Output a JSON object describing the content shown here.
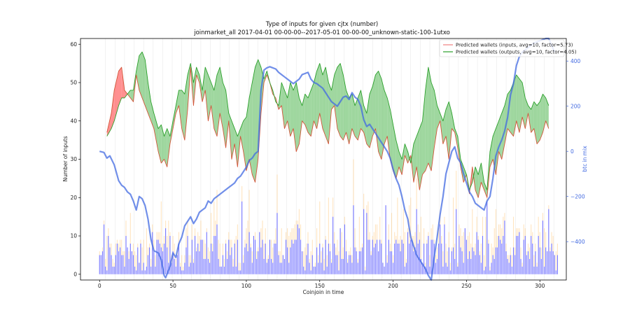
{
  "chart_data": {
    "type": "line",
    "title": "Type of inputs for given cjtx (number)",
    "subtitle": "joinmarket_all 2017-04-01 00-00-00--2017-05-01 00-00-00_unknown-static-100-1utxo",
    "xlabel": "Coinjoin in time",
    "ylabel": "Number of inputs",
    "ylabel_right": "btc in mix",
    "xlim": [
      -13,
      318
    ],
    "ylim": [
      -1.5,
      61.5
    ],
    "ylim_right": [
      -570,
      500
    ],
    "xticks": [
      0,
      50,
      100,
      150,
      200,
      250,
      300
    ],
    "yticks": [
      0,
      10,
      20,
      30,
      40,
      50,
      60
    ],
    "yticks_right": [
      -400,
      -200,
      0,
      200,
      400
    ],
    "legend_position": "top-right",
    "colors": {
      "inputs": "#d62728",
      "inputs_fill": "#ff6b6b",
      "outputs": "#2ca02c",
      "outputs_fill": "#7fc97f",
      "btc": "#4169e1",
      "bars_main": "#0000ff",
      "bars_secondary": "#ffb347"
    },
    "series": [
      {
        "name": "Predicted wallets (inputs, avg=10, factor=5.73)",
        "x": [
          5,
          8,
          10,
          13,
          15,
          17,
          19,
          21,
          23,
          25,
          27,
          29,
          31,
          33,
          35,
          37,
          40,
          42,
          44,
          46,
          48,
          50,
          52,
          54,
          56,
          58,
          60,
          62,
          64,
          66,
          68,
          70,
          72,
          74,
          76,
          78,
          80,
          82,
          84,
          86,
          88,
          90,
          92,
          94,
          96,
          98,
          100,
          102,
          104,
          106,
          108,
          110,
          112,
          114,
          116,
          118,
          120,
          122,
          124,
          126,
          128,
          130,
          132,
          134,
          136,
          138,
          140,
          142,
          144,
          146,
          148,
          150,
          152,
          154,
          156,
          158,
          160,
          162,
          164,
          166,
          168,
          170,
          172,
          174,
          176,
          178,
          180,
          182,
          184,
          186,
          188,
          190,
          192,
          194,
          196,
          198,
          200,
          202,
          204,
          206,
          208,
          210,
          212,
          214,
          216,
          218,
          220,
          222,
          224,
          226,
          228,
          230,
          232,
          234,
          236,
          238,
          240,
          242,
          244,
          246,
          248,
          250,
          252,
          254,
          256,
          258,
          260,
          262,
          264,
          266,
          268,
          270,
          272,
          274,
          276,
          278,
          280,
          282,
          284,
          286,
          288,
          290,
          292,
          294,
          296,
          298,
          300,
          302,
          304,
          306
        ],
        "values": [
          37,
          42,
          48,
          53,
          54,
          48,
          47,
          46,
          45,
          52,
          48,
          46,
          44,
          42,
          40,
          38,
          32,
          29,
          30,
          28,
          34,
          38,
          42,
          44,
          38,
          35,
          43,
          54,
          44,
          52,
          50,
          45,
          48,
          40,
          44,
          38,
          36,
          42,
          38,
          33,
          40,
          30,
          34,
          28,
          36,
          32,
          27,
          30,
          26,
          24,
          30,
          42,
          50,
          52,
          50,
          47,
          46,
          43,
          44,
          38,
          40,
          36,
          38,
          32,
          34,
          40,
          39,
          37,
          36,
          40,
          38,
          42,
          38,
          36,
          34,
          43,
          44,
          38,
          36,
          35,
          37,
          34,
          38,
          36,
          35,
          38,
          37,
          34,
          33,
          36,
          38,
          32,
          30,
          34,
          36,
          30,
          27,
          25,
          28,
          26,
          31,
          29,
          31,
          24,
          28,
          22,
          26,
          27,
          29,
          27,
          33,
          38,
          40,
          34,
          36,
          30,
          38,
          37,
          33,
          28,
          24,
          26,
          21,
          28,
          22,
          20,
          24,
          22,
          20,
          28,
          30,
          26,
          32,
          30,
          34,
          38,
          37,
          36,
          40,
          37,
          41,
          38,
          42,
          37,
          38,
          34,
          35,
          37,
          40,
          38
        ],
        "fill_to": "outputs_when_above"
      },
      {
        "name": "Predicted wallets (outputs, avg=10, factor=4.05)",
        "x": [
          5,
          8,
          10,
          13,
          15,
          17,
          19,
          21,
          23,
          25,
          27,
          29,
          31,
          33,
          35,
          37,
          40,
          42,
          44,
          46,
          48,
          50,
          52,
          54,
          56,
          58,
          60,
          62,
          64,
          66,
          68,
          70,
          72,
          74,
          76,
          78,
          80,
          82,
          84,
          86,
          88,
          90,
          92,
          94,
          96,
          98,
          100,
          102,
          104,
          106,
          108,
          110,
          112,
          114,
          116,
          118,
          120,
          122,
          124,
          126,
          128,
          130,
          132,
          134,
          136,
          138,
          140,
          142,
          144,
          146,
          148,
          150,
          152,
          154,
          156,
          158,
          160,
          162,
          164,
          166,
          168,
          170,
          172,
          174,
          176,
          178,
          180,
          182,
          184,
          186,
          188,
          190,
          192,
          194,
          196,
          198,
          200,
          202,
          204,
          206,
          208,
          210,
          212,
          214,
          216,
          218,
          220,
          222,
          224,
          226,
          228,
          230,
          232,
          234,
          236,
          238,
          240,
          242,
          244,
          246,
          248,
          250,
          252,
          254,
          256,
          258,
          260,
          262,
          264,
          266,
          268,
          270,
          272,
          274,
          276,
          278,
          280,
          282,
          284,
          286,
          288,
          290,
          292,
          294,
          296,
          298,
          300,
          302,
          304,
          306
        ],
        "values": [
          36,
          38,
          40,
          44,
          46,
          46,
          47,
          48,
          48,
          53,
          57,
          58,
          56,
          50,
          45,
          42,
          38,
          39,
          36,
          38,
          36,
          40,
          44,
          48,
          48,
          47,
          52,
          55,
          50,
          54,
          52,
          48,
          54,
          52,
          50,
          48,
          52,
          54,
          50,
          48,
          42,
          40,
          38,
          36,
          38,
          40,
          41,
          46,
          50,
          54,
          56,
          54,
          51,
          53,
          50,
          48,
          45,
          44,
          50,
          48,
          46,
          50,
          48,
          50,
          46,
          44,
          47,
          46,
          48,
          50,
          53,
          55,
          52,
          54,
          50,
          48,
          52,
          54,
          55,
          52,
          48,
          46,
          47,
          44,
          46,
          48,
          44,
          42,
          47,
          49,
          52,
          53,
          51,
          48,
          46,
          43,
          39,
          35,
          32,
          30,
          34,
          32,
          29,
          34,
          36,
          38,
          40,
          48,
          54,
          50,
          48,
          44,
          42,
          40,
          43,
          45,
          42,
          38,
          36,
          30,
          28,
          26,
          22,
          24,
          28,
          26,
          29,
          24,
          22,
          32,
          36,
          38,
          40,
          42,
          44,
          47,
          48,
          50,
          52,
          51,
          50,
          46,
          44,
          43,
          45,
          44,
          45,
          47,
          46,
          44
        ],
        "fill_to": "inputs_when_above"
      },
      {
        "name": "btc in mix",
        "axis": "right",
        "x": [
          0,
          3,
          5,
          7,
          10,
          13,
          15,
          17,
          19,
          21,
          23,
          25,
          27,
          29,
          31,
          33,
          35,
          37,
          40,
          42,
          44,
          45,
          48,
          50,
          52,
          54,
          56,
          58,
          60,
          62,
          64,
          66,
          68,
          70,
          72,
          74,
          76,
          78,
          80,
          82,
          84,
          86,
          88,
          90,
          92,
          94,
          96,
          98,
          100,
          102,
          104,
          106,
          108,
          110,
          112,
          114,
          116,
          118,
          120,
          122,
          124,
          126,
          128,
          130,
          132,
          134,
          136,
          138,
          140,
          142,
          144,
          146,
          148,
          150,
          152,
          154,
          156,
          158,
          160,
          162,
          164,
          166,
          168,
          170,
          172,
          174,
          176,
          178,
          180,
          182,
          184,
          186,
          188,
          190,
          192,
          194,
          196,
          198,
          200,
          202,
          204,
          206,
          208,
          210,
          212,
          214,
          216,
          218,
          220,
          222,
          224,
          226,
          228,
          230,
          232,
          234,
          236,
          238,
          240,
          242,
          244,
          246,
          248,
          250,
          252,
          254,
          256,
          258,
          260,
          262,
          264,
          266,
          268,
          270,
          272,
          274,
          276,
          278,
          280,
          282,
          284,
          286,
          288,
          290,
          292,
          294,
          296,
          298,
          300,
          302,
          304,
          306,
          310
        ],
        "values": [
          0,
          -5,
          -30,
          -20,
          -60,
          -130,
          -150,
          -160,
          -180,
          -190,
          -220,
          -260,
          -200,
          -210,
          -240,
          -300,
          -390,
          -440,
          -450,
          -480,
          -550,
          -560,
          -510,
          -450,
          -470,
          -410,
          -380,
          -330,
          -310,
          -290,
          -320,
          -300,
          -270,
          -260,
          -250,
          -220,
          -230,
          -210,
          -200,
          -190,
          -180,
          -170,
          -160,
          -150,
          -140,
          -120,
          -110,
          -90,
          -70,
          -40,
          -30,
          -10,
          0,
          270,
          360,
          370,
          375,
          370,
          365,
          350,
          340,
          330,
          320,
          310,
          300,
          310,
          320,
          340,
          345,
          350,
          320,
          305,
          300,
          290,
          280,
          260,
          240,
          220,
          210,
          200,
          220,
          240,
          245,
          230,
          260,
          240,
          230,
          200,
          140,
          110,
          120,
          100,
          80,
          60,
          40,
          20,
          0,
          -30,
          -80,
          -120,
          -150,
          -200,
          -260,
          -300,
          -380,
          -420,
          -460,
          -480,
          -500,
          -520,
          -550,
          -570,
          -470,
          -380,
          -280,
          -200,
          -100,
          -50,
          0,
          20,
          -30,
          -50,
          -100,
          -140,
          -180,
          -200,
          -230,
          -240,
          -250,
          -260,
          -220,
          -200,
          -120,
          -20,
          20,
          50,
          90,
          150,
          250,
          300,
          380,
          420,
          440,
          450,
          460,
          470,
          480,
          485,
          490,
          495,
          500,
          500,
          440
        ],
        "fill_to": null
      }
    ]
  }
}
